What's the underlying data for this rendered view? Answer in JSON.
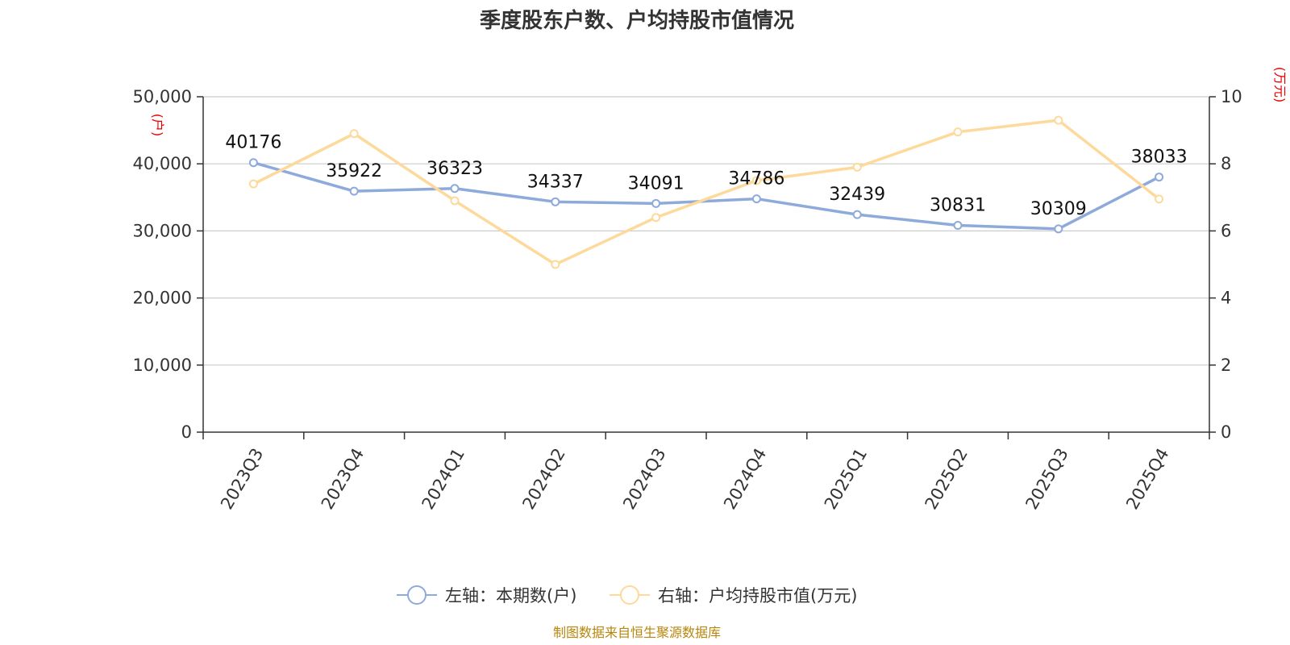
{
  "chart_data": {
    "type": "line",
    "title": "季度股东户数、户均持股市值情况",
    "categories": [
      "2023Q3",
      "2023Q4",
      "2024Q1",
      "2024Q2",
      "2024Q3",
      "2024Q4",
      "2025Q1",
      "2025Q2",
      "2025Q3",
      "2025Q4"
    ],
    "left_axis": {
      "unit_label": "(户)",
      "ylim": [
        0,
        50000
      ],
      "ticks": [
        "0",
        "10,000",
        "20,000",
        "30,000",
        "40,000",
        "50,000"
      ]
    },
    "right_axis": {
      "unit_label": "(万元)",
      "ylim": [
        0,
        10
      ],
      "ticks": [
        "0",
        "2",
        "4",
        "6",
        "8",
        "10"
      ]
    },
    "grid": true,
    "legend_position": "bottom-center",
    "series": [
      {
        "name": "左轴：本期数(户)",
        "axis": "left",
        "color": "#8eaadb",
        "values": [
          40176,
          35922,
          36323,
          34337,
          34091,
          34786,
          32439,
          30831,
          30309,
          38033
        ],
        "labels": [
          "40176",
          "35922",
          "36323",
          "34337",
          "34091",
          "34786",
          "32439",
          "30831",
          "30309",
          "38033"
        ]
      },
      {
        "name": "右轴：户均持股市值(万元)",
        "axis": "right",
        "color": "#fdd99b",
        "values": [
          7.4,
          8.9,
          6.9,
          5.0,
          6.4,
          7.5,
          7.9,
          8.95,
          9.3,
          6.95
        ]
      }
    ],
    "source": "制图数据来自恒生聚源数据库"
  }
}
